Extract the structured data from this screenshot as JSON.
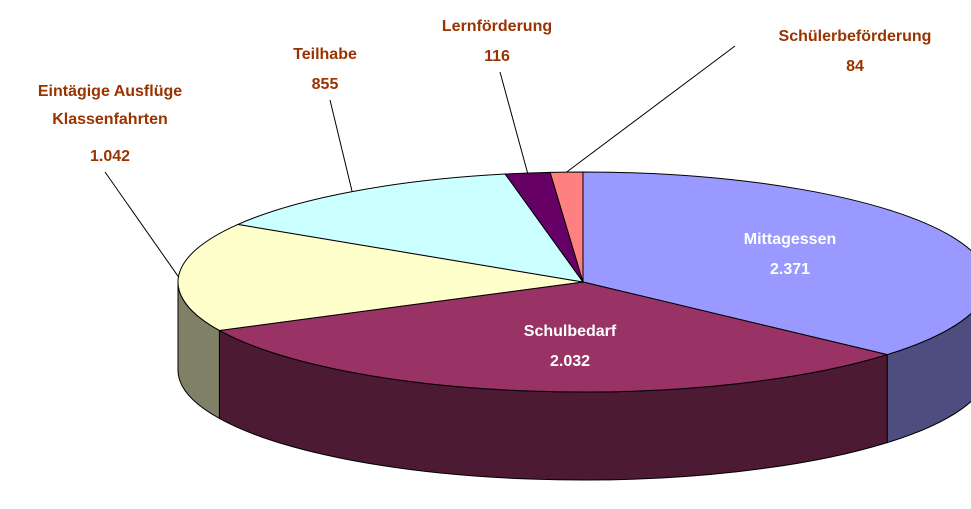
{
  "chart_data": {
    "type": "pie3d",
    "categories": [
      "Mittagessen",
      "Schulbedarf",
      "Eintägige Ausflüge\nKlassenfahrten",
      "Teilhabe",
      "Lernförderung",
      "Schülerbeförderung"
    ],
    "values": [
      2371,
      2032,
      1042,
      855,
      116,
      84
    ],
    "value_labels": [
      "2.371",
      "2.032",
      "1.042",
      "855",
      "116",
      "84"
    ],
    "colors": [
      "#9999ff",
      "#993366",
      "#ffffcc",
      "#ccffff",
      "#660066",
      "#ff8080"
    ]
  }
}
